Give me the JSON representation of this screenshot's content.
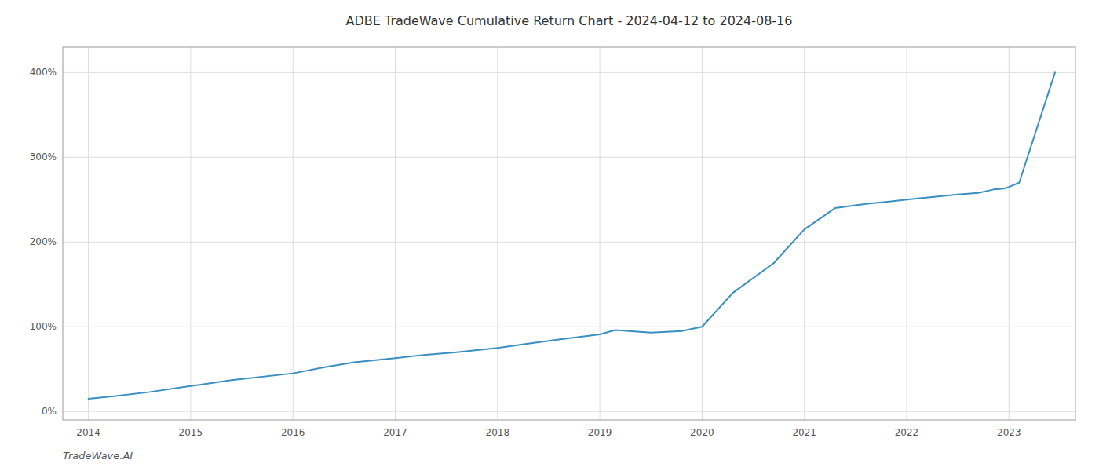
{
  "chart_data": {
    "type": "line",
    "title": "ADBE TradeWave Cumulative Return Chart - 2024-04-12 to 2024-08-16",
    "annotations": [
      "TradeWave.AI"
    ],
    "x": [
      2014.0,
      2014.25,
      2014.6,
      2015.0,
      2015.4,
      2016.0,
      2016.3,
      2016.6,
      2017.0,
      2017.3,
      2017.6,
      2018.0,
      2018.3,
      2018.6,
      2019.0,
      2019.15,
      2019.5,
      2019.8,
      2020.0,
      2020.3,
      2020.7,
      2021.0,
      2021.3,
      2021.6,
      2021.85,
      2022.0,
      2022.15,
      2022.5,
      2022.7,
      2022.85,
      2022.95,
      2023.0,
      2023.1,
      2023.45
    ],
    "values": [
      15,
      18,
      23,
      30,
      37,
      45,
      52,
      58,
      63,
      67,
      70,
      75,
      80,
      85,
      91,
      96,
      93,
      95,
      100,
      140,
      175,
      215,
      240,
      245,
      248,
      250,
      252,
      256,
      258,
      262,
      263,
      265,
      270,
      400
    ],
    "color": "#3a8fc1",
    "xlim": [
      2013.75,
      2023.65
    ],
    "xticks": [
      2014,
      2015,
      2016,
      2017,
      2018,
      2019,
      2020,
      2021,
      2022,
      2023
    ],
    "ylim": [
      -10,
      430
    ],
    "yticks": [
      {
        "value": 0,
        "label": "0%"
      },
      {
        "value": 100,
        "label": "100%"
      },
      {
        "value": 200,
        "label": "200%"
      },
      {
        "value": 300,
        "label": "300%"
      },
      {
        "value": 400,
        "label": "400%"
      }
    ],
    "grid": true
  }
}
